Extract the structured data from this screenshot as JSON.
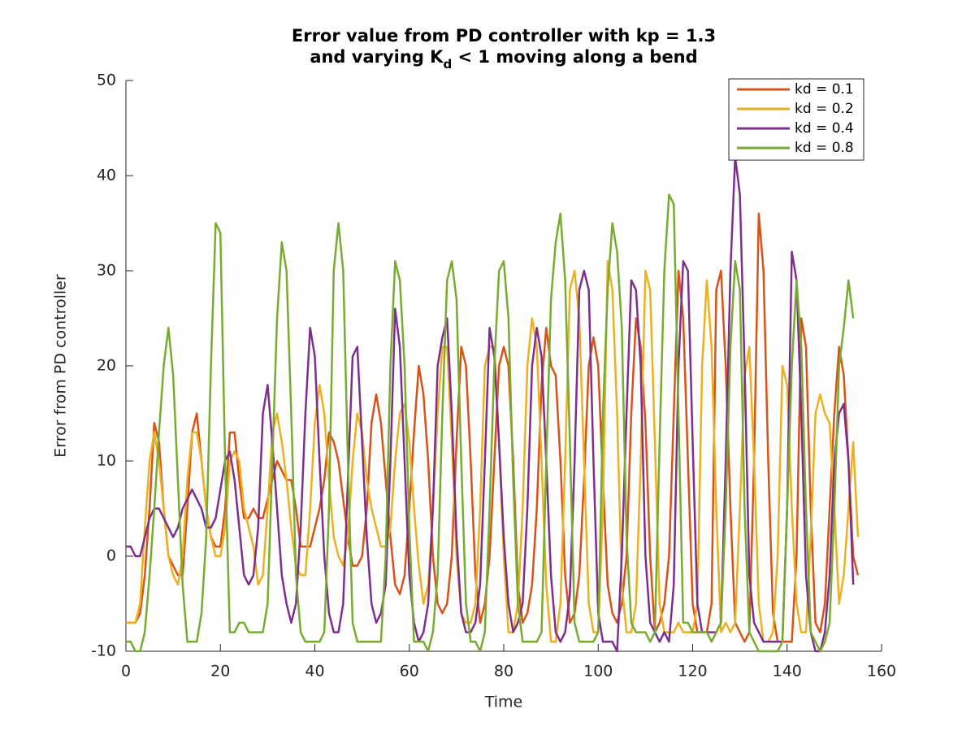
{
  "chart_data": {
    "type": "line",
    "title": [
      "Error value from PD controller with kp = 1.3",
      [
        "and varying K",
        "d",
        " < 1 moving along a bend"
      ]
    ],
    "xlabel": "Time",
    "ylabel": "Error from PD controller",
    "x": [
      0,
      1,
      2,
      3,
      4,
      5,
      6,
      7,
      8,
      9,
      10,
      11,
      12,
      13,
      14,
      15,
      16,
      17,
      18,
      19,
      20,
      21,
      22,
      23,
      24,
      25,
      26,
      27,
      28,
      29,
      30,
      31,
      32,
      33,
      34,
      35,
      36,
      37,
      38,
      39,
      40,
      41,
      42,
      43,
      44,
      45,
      46,
      47,
      48,
      49,
      50,
      51,
      52,
      53,
      54,
      55,
      56,
      57,
      58,
      59,
      60,
      61,
      62,
      63,
      64,
      65,
      66,
      67,
      68,
      69,
      70,
      71,
      72,
      73,
      74,
      75,
      76,
      77,
      78,
      79,
      80,
      81,
      82,
      83,
      84,
      85,
      86,
      87,
      88,
      89,
      90,
      91,
      92,
      93,
      94,
      95,
      96,
      97,
      98,
      99,
      100,
      101,
      102,
      103,
      104,
      105,
      106,
      107,
      108,
      109,
      110,
      111,
      112,
      113,
      114,
      115,
      116,
      117,
      118,
      119,
      120,
      121,
      122,
      123,
      124,
      125,
      126,
      127,
      128,
      129,
      130,
      131,
      132,
      133,
      134,
      135,
      136,
      137,
      138,
      139,
      140,
      141,
      142,
      143,
      144,
      145,
      146,
      147,
      148,
      149,
      150,
      151,
      152,
      153,
      154,
      155,
      156
    ],
    "series": [
      {
        "name": "kd = 0.1",
        "color": "#d95319",
        "values": [
          -7,
          -7,
          -7,
          -6,
          -2,
          5,
          14,
          12,
          5,
          0,
          -1,
          -2,
          -2,
          5,
          13,
          15,
          10,
          5,
          2,
          1,
          1,
          5,
          13,
          13,
          8,
          4,
          4,
          5,
          4,
          4,
          6,
          8,
          10,
          9,
          8,
          8,
          5,
          1,
          1,
          1,
          3,
          5,
          8,
          13,
          12,
          10,
          6,
          2,
          -1,
          -1,
          0,
          5,
          14,
          17,
          14,
          8,
          2,
          -3,
          -4,
          -2,
          5,
          13,
          20,
          17,
          10,
          0,
          -5,
          -6,
          -5,
          0,
          12,
          22,
          20,
          10,
          -2,
          -7,
          -5,
          0,
          10,
          20,
          22,
          20,
          10,
          -3,
          -7,
          -6,
          -3,
          5,
          18,
          24,
          20,
          19,
          10,
          -2,
          -7,
          -6,
          -2,
          8,
          20,
          23,
          20,
          8,
          -3,
          -6,
          -7,
          -5,
          0,
          15,
          25,
          22,
          14,
          0,
          -8,
          -7,
          -5,
          0,
          15,
          30,
          25,
          10,
          -5,
          -8,
          -8,
          -8,
          -5,
          28,
          30,
          20,
          5,
          -7,
          -8,
          -9,
          -8,
          10,
          36,
          30,
          10,
          -6,
          -9,
          -9,
          -9,
          -9,
          0,
          25,
          22,
          5,
          -7,
          -8,
          -5,
          5,
          15,
          22,
          19,
          10,
          0,
          -2,
          null
        ]
      },
      {
        "name": "kd = 0.2",
        "color": "#edb120",
        "values": [
          -7,
          -7,
          -7,
          -5,
          3,
          10,
          13,
          10,
          5,
          0,
          -2,
          -3,
          0,
          8,
          13,
          13,
          10,
          5,
          2,
          0,
          0,
          3,
          10,
          11,
          10,
          5,
          3,
          1,
          -3,
          -2,
          5,
          13,
          15,
          12,
          8,
          3,
          -1,
          -2,
          -2,
          5,
          14,
          18,
          15,
          8,
          2,
          0,
          -1,
          2,
          10,
          15,
          13,
          8,
          5,
          3,
          1,
          1,
          3,
          10,
          15,
          16,
          12,
          5,
          -1,
          -5,
          -3,
          5,
          15,
          22,
          22,
          12,
          0,
          -6,
          -7,
          -7,
          -5,
          5,
          20,
          22,
          22,
          12,
          0,
          -8,
          -8,
          -5,
          5,
          20,
          25,
          22,
          10,
          -3,
          -9,
          -9,
          -5,
          10,
          28,
          30,
          25,
          10,
          -5,
          -8,
          -8,
          5,
          31,
          28,
          15,
          -3,
          -8,
          -8,
          -5,
          10,
          30,
          28,
          12,
          -5,
          -8,
          -8,
          -8,
          -7,
          -8,
          -8,
          -8,
          -5,
          20,
          29,
          22,
          5,
          -8,
          -7,
          -8,
          -7,
          5,
          19,
          22,
          10,
          -5,
          -9,
          -9,
          -8,
          0,
          20,
          18,
          5,
          -5,
          -8,
          -8,
          2,
          15,
          17,
          15,
          14,
          5,
          -5,
          -2,
          5,
          12,
          2,
          null
        ]
      },
      {
        "name": "kd = 0.4",
        "color": "#7e2f8e",
        "values": [
          1,
          1,
          0,
          0,
          2,
          4,
          5,
          5,
          4,
          3,
          2,
          3,
          5,
          6,
          7,
          6,
          5,
          3,
          3,
          4,
          7,
          10,
          11,
          8,
          3,
          -2,
          -3,
          -2,
          3,
          15,
          18,
          12,
          5,
          -2,
          -5,
          -7,
          -5,
          3,
          15,
          24,
          21,
          10,
          0,
          -6,
          -8,
          -8,
          -5,
          8,
          21,
          22,
          12,
          2,
          -5,
          -7,
          -6,
          -3,
          10,
          26,
          22,
          10,
          -2,
          -7,
          -9,
          -8,
          -5,
          5,
          20,
          23,
          25,
          15,
          2,
          -6,
          -8,
          -8,
          -7,
          -3,
          10,
          24,
          21,
          12,
          2,
          -5,
          -8,
          -7,
          -5,
          5,
          20,
          24,
          21,
          10,
          -2,
          -8,
          -9,
          -8,
          -4,
          10,
          28,
          30,
          28,
          10,
          -6,
          -9,
          -9,
          -9,
          -10,
          0,
          15,
          29,
          28,
          20,
          0,
          -7,
          -8,
          -9,
          -8,
          -9,
          -3,
          20,
          31,
          30,
          12,
          -5,
          -8,
          -8,
          -8,
          -8,
          -7,
          10,
          30,
          42,
          38,
          20,
          -2,
          -7,
          -8,
          -9,
          -9,
          -9,
          -9,
          -9,
          5,
          32,
          29,
          15,
          -2,
          -8,
          -10,
          -10,
          -8,
          -2,
          10,
          15,
          16,
          10,
          -3,
          null,
          null
        ]
      },
      {
        "name": "kd = 0.8",
        "color": "#77ac30",
        "values": [
          -9,
          -9,
          -10,
          -10,
          -8,
          -2,
          5,
          13,
          20,
          24,
          19,
          8,
          -3,
          -9,
          -9,
          -9,
          -6,
          2,
          20,
          35,
          34,
          10,
          -8,
          -8,
          -7,
          -7,
          -8,
          -8,
          -8,
          -8,
          -5,
          10,
          25,
          33,
          30,
          15,
          -2,
          -8,
          -9,
          -9,
          -9,
          -9,
          -8,
          5,
          30,
          35,
          30,
          10,
          -7,
          -9,
          -9,
          -9,
          -9,
          -9,
          -9,
          0,
          20,
          31,
          29,
          20,
          3,
          -9,
          -9,
          -9,
          -10,
          -8,
          -2,
          15,
          29,
          31,
          27,
          10,
          -5,
          -9,
          -9,
          -10,
          -8,
          5,
          20,
          30,
          31,
          25,
          8,
          -5,
          -9,
          -9,
          -9,
          -9,
          -8,
          10,
          27,
          33,
          36,
          29,
          12,
          -7,
          -9,
          -9,
          -9,
          -9,
          -8,
          15,
          28,
          35,
          32,
          24,
          2,
          -7,
          -8,
          -8,
          -8,
          -9,
          -8,
          12,
          30,
          38,
          37,
          15,
          -7,
          -7,
          -8,
          -8,
          -8,
          -8,
          -9,
          -8,
          -7,
          5,
          22,
          31,
          28,
          5,
          -8,
          -9,
          -10,
          -10,
          -10,
          -10,
          -10,
          -9,
          5,
          20,
          29,
          22,
          5,
          -8,
          -9,
          -10,
          -9,
          -7,
          5,
          20,
          24,
          29,
          25,
          null,
          null
        ]
      }
    ],
    "xlim": [
      0,
      160
    ],
    "xticks": [
      0,
      20,
      40,
      60,
      80,
      100,
      120,
      140,
      160
    ],
    "ylim": [
      -10,
      50
    ],
    "yticks": [
      -10,
      0,
      10,
      20,
      30,
      40,
      50
    ],
    "legend": "top-right"
  }
}
